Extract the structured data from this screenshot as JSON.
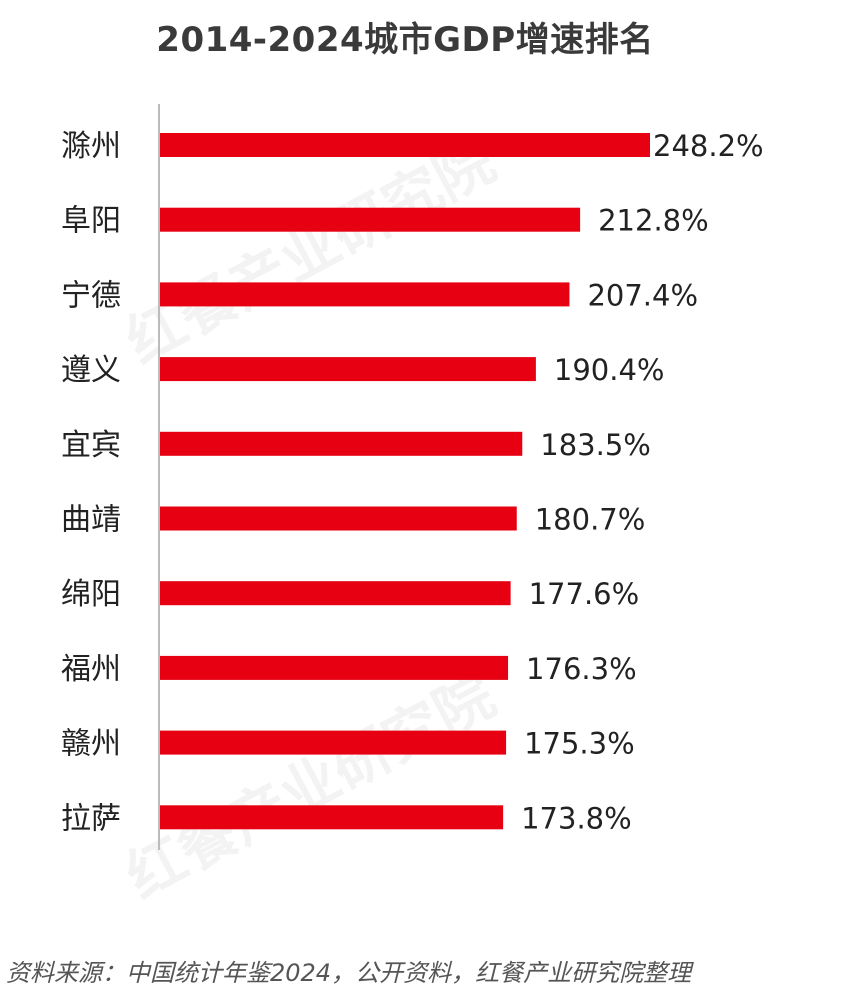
{
  "chart_data": {
    "type": "bar",
    "orientation": "horizontal",
    "title": "2014-2024城市GDP增速排名",
    "categories": [
      "滁州",
      "阜阳",
      "宁德",
      "遵义",
      "宜宾",
      "曲靖",
      "绵阳",
      "福州",
      "赣州",
      "拉萨"
    ],
    "values": [
      248.2,
      212.8,
      207.4,
      190.4,
      183.5,
      180.7,
      177.6,
      176.3,
      175.3,
      173.8
    ],
    "value_labels": [
      "248.2%",
      "212.8%",
      "207.4%",
      "190.4%",
      "183.5%",
      "180.7%",
      "177.6%",
      "176.3%",
      "175.3%",
      "173.8%"
    ],
    "unit": "%",
    "bar_color": "#e60012",
    "axis_color": "#bbbbbb",
    "xlim": [
      0,
      248.2
    ],
    "grid": false,
    "legend": "none"
  },
  "source": "资料来源：中国统计年鉴2024，公开资料，红餐产业研究院整理",
  "watermark": "红餐产业研究院"
}
